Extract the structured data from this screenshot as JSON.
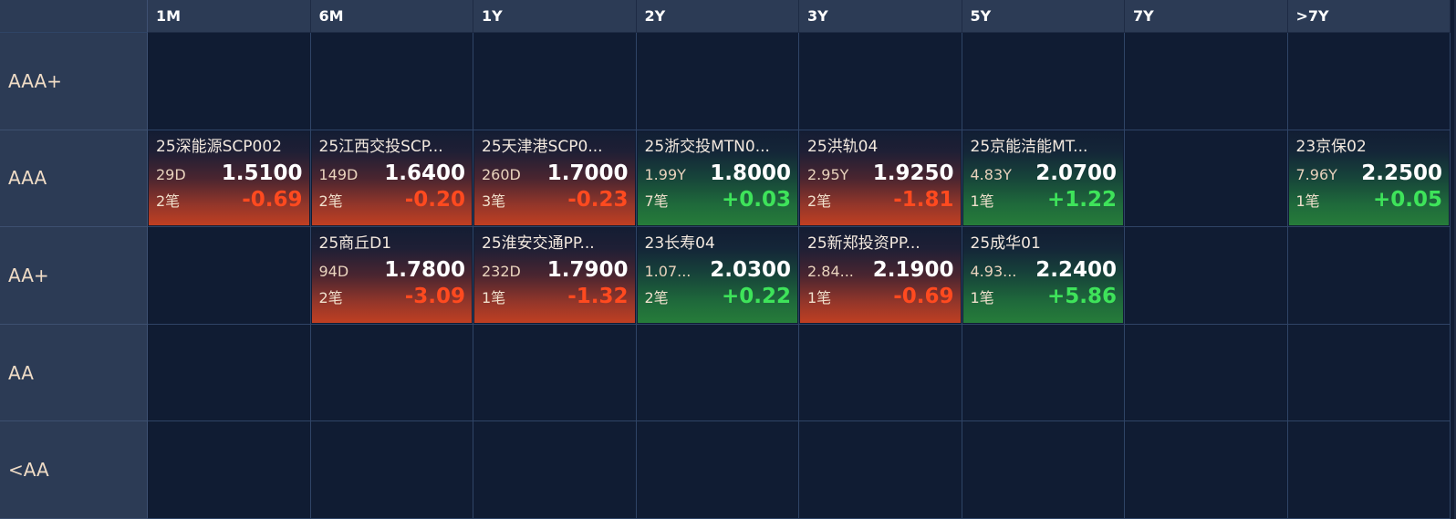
{
  "columns": [
    "1M",
    "6M",
    "1Y",
    "2Y",
    "3Y",
    "5Y",
    "7Y",
    ">7Y"
  ],
  "rows": [
    {
      "rating": "AAA+",
      "cells": [
        null,
        null,
        null,
        null,
        null,
        null,
        null,
        null
      ]
    },
    {
      "rating": "AAA",
      "cells": [
        {
          "name": "25深能源SCP002",
          "term": "29D",
          "yield": "1.5100",
          "count": "2笔",
          "change": "-0.69",
          "direction": "down"
        },
        {
          "name": "25江西交投SCP...",
          "term": "149D",
          "yield": "1.6400",
          "count": "2笔",
          "change": "-0.20",
          "direction": "down"
        },
        {
          "name": "25天津港SCP0...",
          "term": "260D",
          "yield": "1.7000",
          "count": "3笔",
          "change": "-0.23",
          "direction": "down"
        },
        {
          "name": "25浙交投MTN0...",
          "term": "1.99Y",
          "yield": "1.8000",
          "count": "7笔",
          "change": "+0.03",
          "direction": "up"
        },
        {
          "name": "25洪轨04",
          "term": "2.95Y",
          "yield": "1.9250",
          "count": "2笔",
          "change": "-1.81",
          "direction": "down"
        },
        {
          "name": "25京能洁能MT...",
          "term": "4.83Y",
          "yield": "2.0700",
          "count": "1笔",
          "change": "+1.22",
          "direction": "up"
        },
        null,
        {
          "name": "23京保02",
          "term": "7.96Y",
          "yield": "2.2500",
          "count": "1笔",
          "change": "+0.05",
          "direction": "up"
        }
      ]
    },
    {
      "rating": "AA+",
      "cells": [
        null,
        {
          "name": "25商丘D1",
          "term": "94D",
          "yield": "1.7800",
          "count": "2笔",
          "change": "-3.09",
          "direction": "down"
        },
        {
          "name": "25淮安交通PP...",
          "term": "232D",
          "yield": "1.7900",
          "count": "1笔",
          "change": "-1.32",
          "direction": "down"
        },
        {
          "name": "23长寿04",
          "term": "1.07...",
          "yield": "2.0300",
          "count": "2笔",
          "change": "+0.22",
          "direction": "up"
        },
        {
          "name": "25新郑投资PP...",
          "term": "2.84...",
          "yield": "2.1900",
          "count": "1笔",
          "change": "-0.69",
          "direction": "down"
        },
        {
          "name": "25成华01",
          "term": "4.93...",
          "yield": "2.2400",
          "count": "1笔",
          "change": "+5.86",
          "direction": "up"
        },
        null,
        null
      ]
    },
    {
      "rating": "AA",
      "cells": [
        null,
        null,
        null,
        null,
        null,
        null,
        null,
        null
      ]
    },
    {
      "rating": "<AA",
      "cells": [
        null,
        null,
        null,
        null,
        null,
        null,
        null,
        null
      ]
    }
  ],
  "colors": {
    "header_bg": "#2c3b55",
    "grid_bg": "#101c33",
    "down": "#ff4a1f",
    "up": "#3ee35a"
  }
}
